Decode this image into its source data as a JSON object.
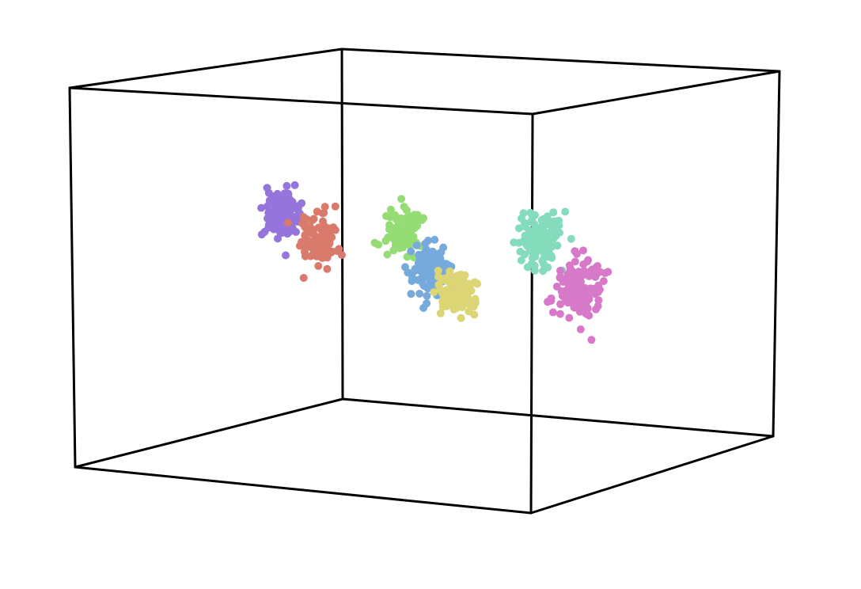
{
  "chart_data": {
    "type": "scatter",
    "dimensions": 3,
    "title": "",
    "xlabel": "",
    "ylabel": "",
    "zlabel": "",
    "axes_visible": false,
    "grid": false,
    "legend": "none",
    "bounding_box": true,
    "point_size": 5,
    "xlim": [
      0,
      100
    ],
    "ylim": [
      0,
      100
    ],
    "zlim": [
      0,
      100
    ],
    "series": [
      {
        "color": "#9575dc",
        "center": [
          18,
          48,
          62
        ],
        "spread": [
          1.6,
          2.2,
          3.3
        ],
        "count": 130
      },
      {
        "color": "#d97a6c",
        "center": [
          25,
          50,
          55
        ],
        "spread": [
          1.5,
          2.0,
          3.3
        ],
        "count": 120
      },
      {
        "color": "#95dc75",
        "center": [
          38,
          60,
          57
        ],
        "spread": [
          1.5,
          2.0,
          2.8
        ],
        "count": 110
      },
      {
        "color": "#76aadc",
        "center": [
          50,
          50,
          49
        ],
        "spread": [
          1.7,
          2.2,
          3.5
        ],
        "count": 120
      },
      {
        "color": "#dcd575",
        "center": [
          58,
          46,
          44
        ],
        "spread": [
          1.8,
          2.2,
          3.0
        ],
        "count": 130
      },
      {
        "color": "#85dcbc",
        "center": [
          70,
          59,
          58
        ],
        "spread": [
          1.8,
          2.4,
          3.2
        ],
        "count": 130
      },
      {
        "color": "#d779c8",
        "center": [
          82,
          52,
          46
        ],
        "spread": [
          2.0,
          2.6,
          4.0
        ],
        "count": 150
      }
    ]
  }
}
